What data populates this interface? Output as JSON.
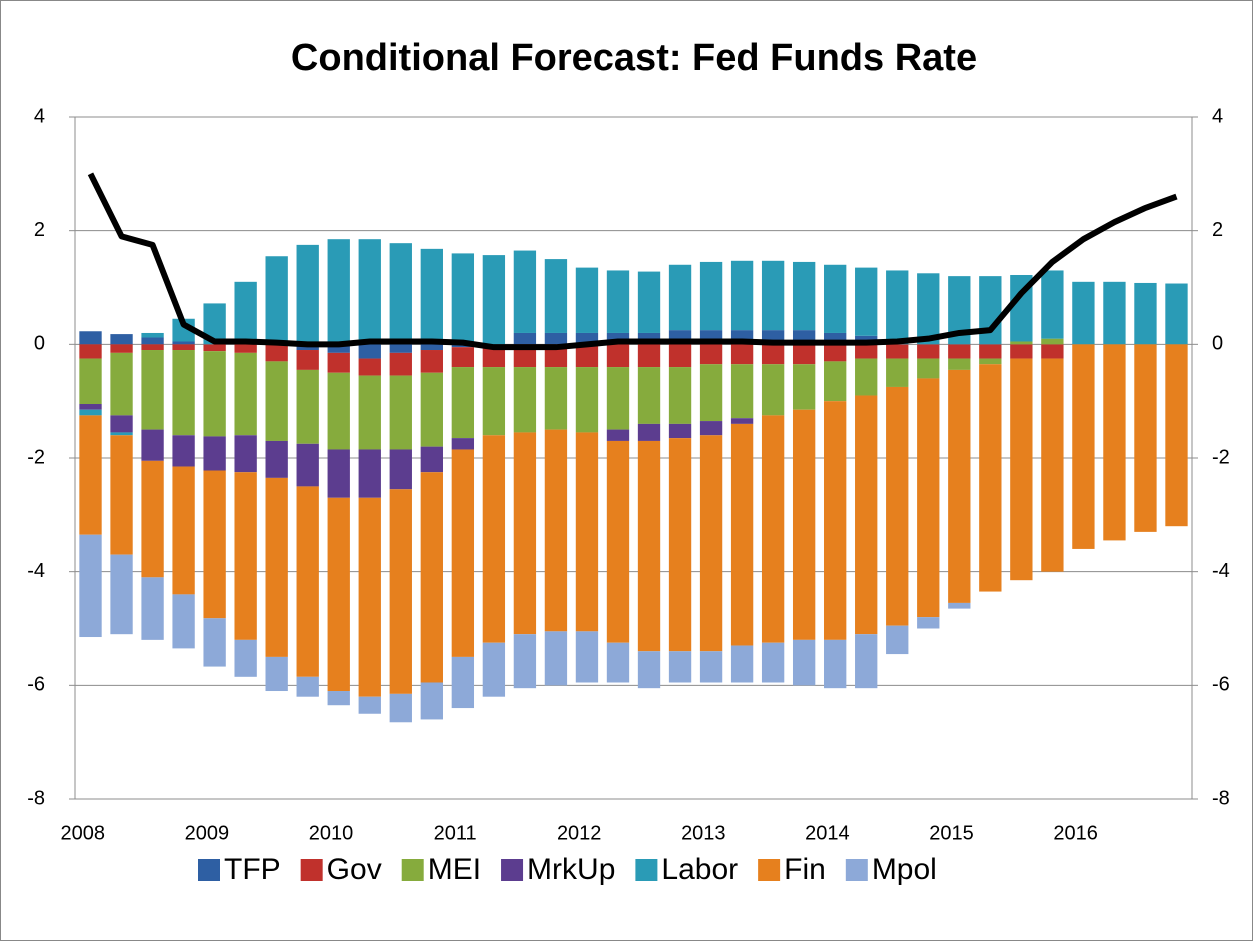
{
  "chart_data": {
    "type": "bar",
    "stacked": true,
    "title": "Conditional Forecast: Fed Funds Rate",
    "categories": [
      "2008",
      null,
      null,
      null,
      "2009",
      null,
      null,
      null,
      "2010",
      null,
      null,
      null,
      "2011",
      null,
      null,
      null,
      "2012",
      null,
      null,
      null,
      "2013",
      null,
      null,
      null,
      "2014",
      null,
      null,
      null,
      "2015",
      null,
      null,
      null,
      "2016",
      null,
      null,
      null
    ],
    "series": [
      {
        "name": "TFP",
        "color": "#2e5fa3",
        "values": [
          0.23,
          0.18,
          0.12,
          0.05,
          0,
          0,
          0,
          -0.1,
          -0.15,
          -0.25,
          -0.15,
          -0.1,
          -0.05,
          0,
          0.2,
          0.2,
          0.2,
          0.2,
          0.2,
          0.25,
          0.25,
          0.25,
          0.25,
          0.25,
          0.2,
          0.15,
          0,
          0,
          0,
          0,
          0,
          0,
          0,
          0,
          0,
          0
        ]
      },
      {
        "name": "Gov",
        "color": "#c0312c",
        "values": [
          -0.25,
          -0.15,
          -0.1,
          -0.1,
          -0.12,
          -0.15,
          -0.3,
          -0.35,
          -0.35,
          -0.3,
          -0.4,
          -0.4,
          -0.35,
          -0.4,
          -0.4,
          -0.4,
          -0.4,
          -0.4,
          -0.4,
          -0.4,
          -0.35,
          -0.35,
          -0.35,
          -0.35,
          -0.3,
          -0.25,
          -0.25,
          -0.25,
          -0.25,
          -0.25,
          -0.25,
          -0.25,
          0,
          0,
          0,
          0
        ]
      },
      {
        "name": "MEI",
        "color": "#86ab3d",
        "values": [
          -0.8,
          -1.1,
          -1.4,
          -1.5,
          -1.5,
          -1.45,
          -1.4,
          -1.3,
          -1.35,
          -1.3,
          -1.3,
          -1.3,
          -1.25,
          -1.2,
          -1.15,
          -1.1,
          -1.15,
          -1.1,
          -1.0,
          -1.0,
          -1.0,
          -0.95,
          -0.9,
          -0.8,
          -0.7,
          -0.65,
          -0.5,
          -0.35,
          -0.2,
          -0.1,
          0.05,
          0.1,
          0,
          0,
          0,
          0
        ]
      },
      {
        "name": "MrkUp",
        "color": "#5c3d8f",
        "values": [
          -0.1,
          -0.3,
          -0.55,
          -0.55,
          -0.6,
          -0.65,
          -0.65,
          -0.75,
          -0.85,
          -0.85,
          -0.7,
          -0.45,
          -0.2,
          0,
          0,
          0,
          0,
          -0.2,
          -0.3,
          -0.25,
          -0.25,
          -0.1,
          0,
          0,
          0,
          0,
          0,
          0,
          0,
          0,
          0,
          0,
          0,
          0,
          0,
          0
        ]
      },
      {
        "name": "Labor",
        "color": "#2a9bb6",
        "values": [
          -0.1,
          -0.05,
          0.08,
          0.4,
          0.72,
          1.1,
          1.55,
          1.75,
          1.85,
          1.85,
          1.78,
          1.68,
          1.6,
          1.57,
          1.45,
          1.3,
          1.15,
          1.1,
          1.08,
          1.15,
          1.2,
          1.22,
          1.22,
          1.2,
          1.2,
          1.2,
          1.3,
          1.25,
          1.2,
          1.2,
          1.17,
          1.2,
          1.1,
          1.1,
          1.08,
          1.07
        ]
      },
      {
        "name": "Fin",
        "color": "#e6801e",
        "values": [
          -2.1,
          -2.1,
          -2.05,
          -2.25,
          -2.6,
          -2.95,
          -3.15,
          -3.35,
          -3.4,
          -3.5,
          -3.6,
          -3.7,
          -3.65,
          -3.65,
          -3.55,
          -3.55,
          -3.5,
          -3.55,
          -3.7,
          -3.75,
          -3.8,
          -3.9,
          -4.0,
          -4.05,
          -4.2,
          -4.2,
          -4.2,
          -4.2,
          -4.1,
          -4.0,
          -3.9,
          -3.75,
          -3.6,
          -3.45,
          -3.3,
          -3.2
        ]
      },
      {
        "name": "Mpol",
        "color": "#8da9d8",
        "values": [
          -1.8,
          -1.4,
          -1.1,
          -0.95,
          -0.85,
          -0.65,
          -0.6,
          -0.35,
          -0.25,
          -0.3,
          -0.5,
          -0.65,
          -0.9,
          -0.95,
          -0.95,
          -0.95,
          -0.9,
          -0.7,
          -0.65,
          -0.55,
          -0.55,
          -0.65,
          -0.7,
          -0.8,
          -0.85,
          -0.95,
          -0.5,
          -0.2,
          -0.1,
          0,
          0,
          0,
          0,
          0,
          0,
          0
        ]
      },
      {
        "type": "line",
        "axis": "y2",
        "color": "#000000",
        "values": [
          3.0,
          1.9,
          1.75,
          0.35,
          0.05,
          0.05,
          0.03,
          0.0,
          0.0,
          0.05,
          0.05,
          0.05,
          0.03,
          -0.05,
          -0.05,
          -0.05,
          0.0,
          0.05,
          0.05,
          0.05,
          0.05,
          0.05,
          0.03,
          0.03,
          0.03,
          0.03,
          0.05,
          0.1,
          0.2,
          0.25,
          0.9,
          1.45,
          1.85,
          2.15,
          2.4,
          2.6
        ]
      }
    ],
    "ylim": [
      -8,
      4
    ],
    "yticks": [
      -8,
      -6,
      -4,
      -2,
      0,
      2,
      4
    ],
    "y2lim": [
      -8,
      4
    ],
    "y2ticks": [
      -8,
      -6,
      -4,
      -2,
      0,
      2,
      4
    ],
    "grid": true,
    "legend": "bottom"
  }
}
